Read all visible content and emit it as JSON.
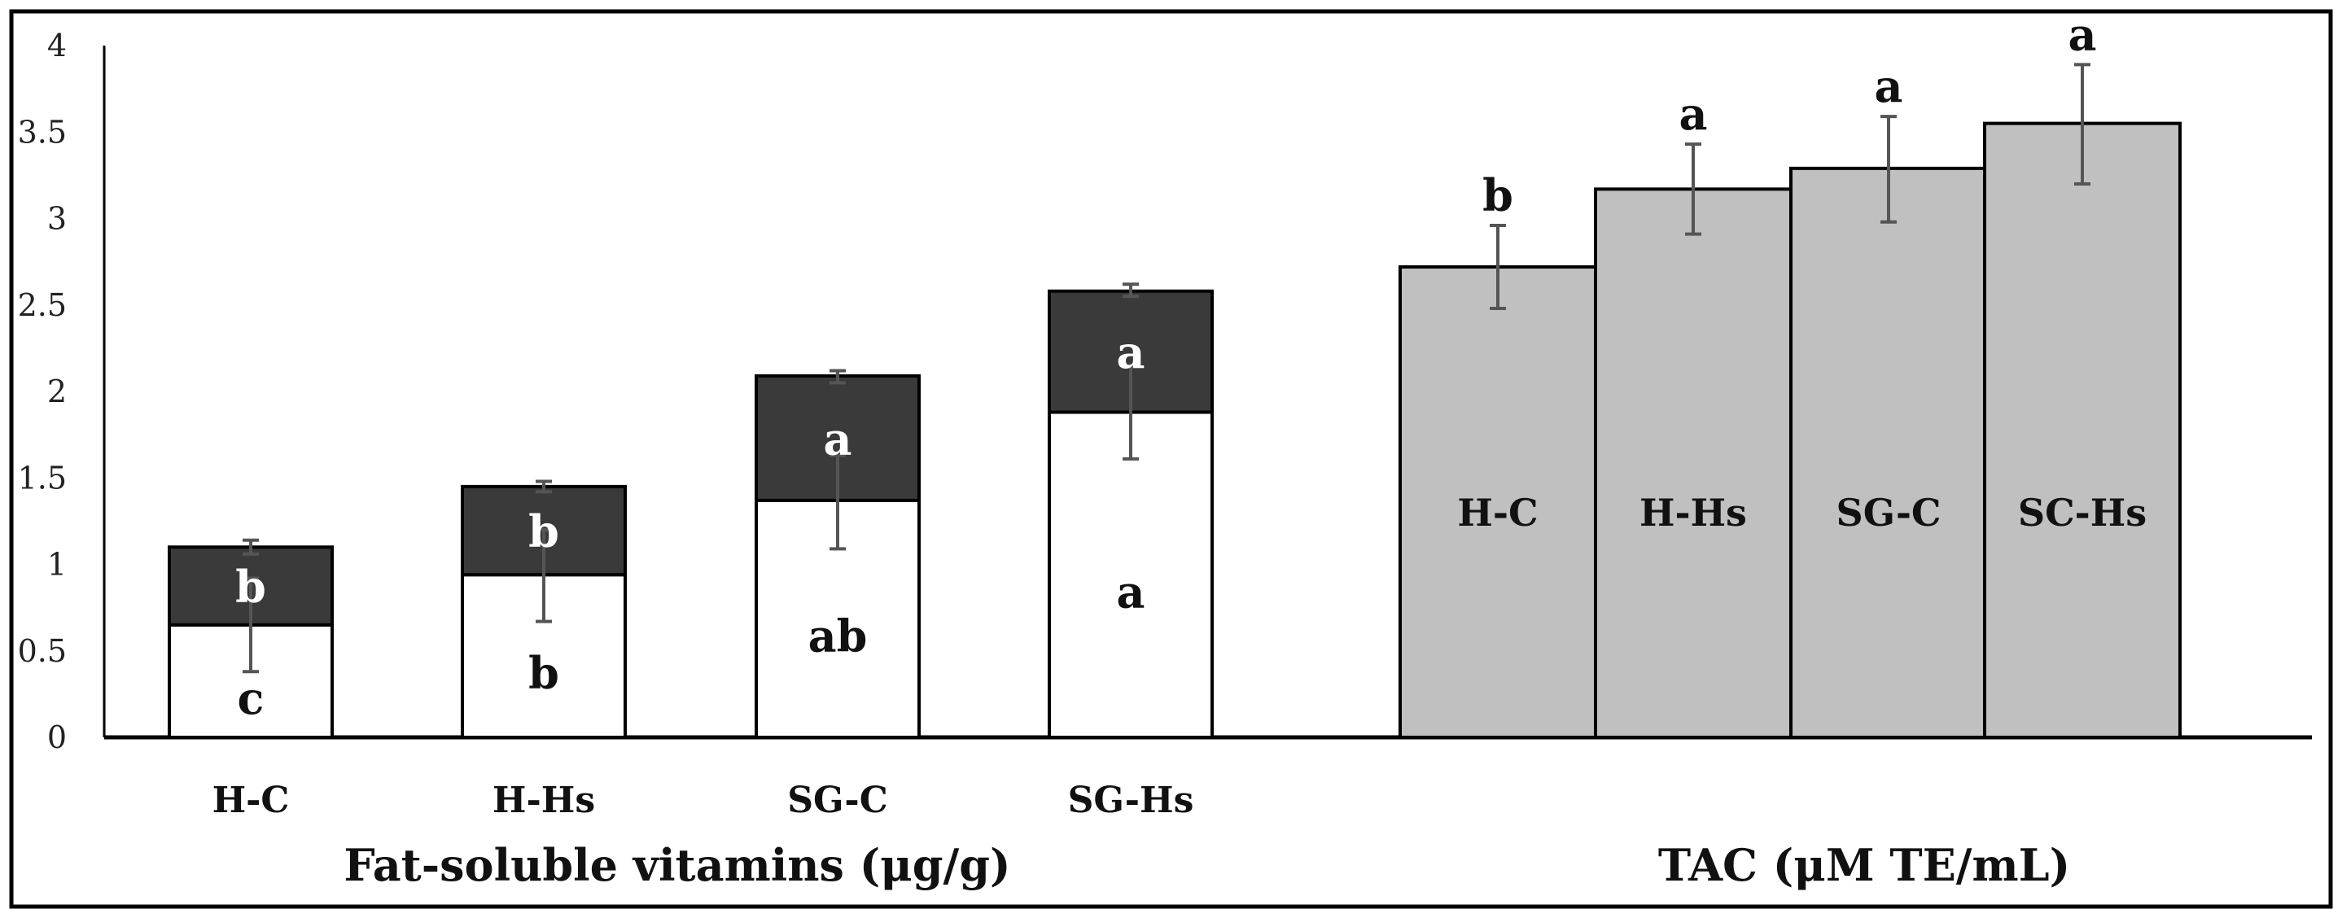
{
  "chart_data": {
    "type": "bar",
    "ylim": [
      0,
      4
    ],
    "yticks": [
      "0",
      "0.5",
      "1",
      "1.5",
      "2",
      "2.5",
      "3",
      "3.5",
      "4"
    ],
    "grid": false,
    "colors": {
      "lower_segment": "#ffffff",
      "upper_segment": "#3a3a3a",
      "tac_bar": "#c0c0c0",
      "error_bar": "#555555",
      "border": "#000000"
    },
    "groups": [
      {
        "name": "fat_soluble_vitamins",
        "label": "Fat-soluble vitamins (μg/g)",
        "stacked": true,
        "categories": [
          "H-C",
          "H-Hs",
          "SG-C",
          "SG-Hs"
        ],
        "series": [
          {
            "name": "lower",
            "values": [
              0.65,
              0.94,
              1.37,
              1.88
            ],
            "error_low": [
              0.38,
              0.67,
              1.09,
              1.61
            ],
            "error_high": [
              0.92,
              1.2,
              1.63,
              2.15
            ],
            "letters": [
              "c",
              "b",
              "ab",
              "a"
            ]
          },
          {
            "name": "upper",
            "values": [
              0.45,
              0.51,
              0.72,
              0.7
            ],
            "error_low": [
              1.06,
              1.42,
              2.05,
              2.55
            ],
            "error_high": [
              1.14,
              1.48,
              2.12,
              2.62
            ],
            "letters": [
              "b",
              "b",
              "a",
              "a"
            ]
          }
        ]
      },
      {
        "name": "tac",
        "label": "TAC (μM TE/mL)",
        "stacked": false,
        "categories": [
          "H-C",
          "H-Hs",
          "SG-C",
          "SC-Hs"
        ],
        "series": [
          {
            "name": "TAC",
            "values": [
              2.72,
              3.17,
              3.29,
              3.55
            ],
            "error_low": [
              2.48,
              2.91,
              2.98,
              3.2
            ],
            "error_high": [
              2.96,
              3.43,
              3.59,
              3.89
            ],
            "letters": [
              "b",
              "a",
              "a",
              "a"
            ]
          }
        ]
      }
    ]
  }
}
